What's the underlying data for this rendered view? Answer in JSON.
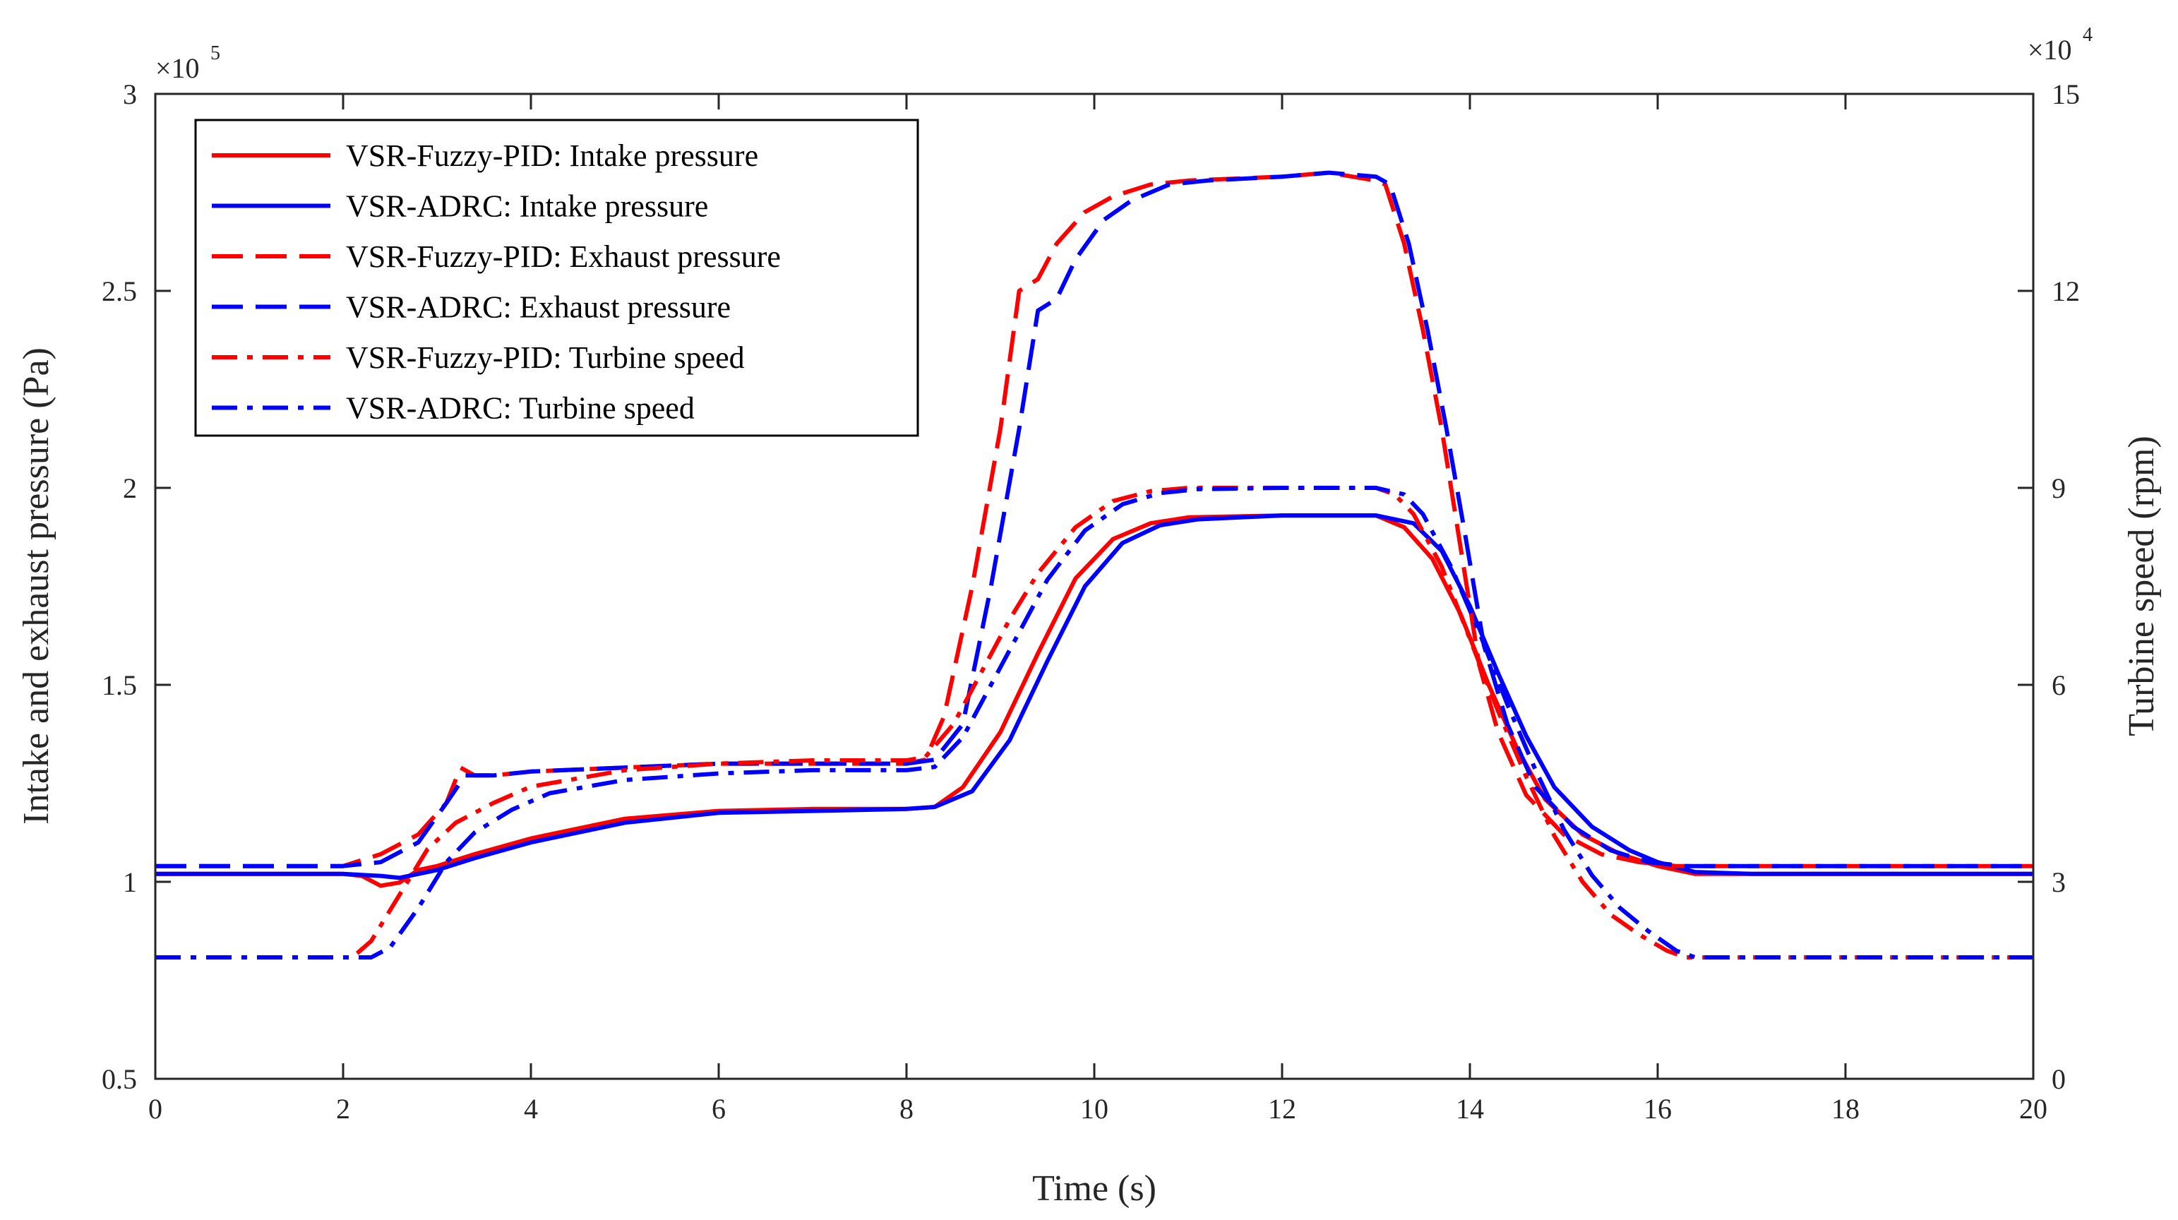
{
  "chart_data": {
    "type": "line",
    "xlabel": "Time (s)",
    "ylabel_left": "Intake and exhaust pressure (Pa)",
    "ylabel_right": "Turbine speed (rpm)",
    "xlim": [
      0,
      20
    ],
    "ylim_left": [
      0.5,
      3.0
    ],
    "ylim_right": [
      0,
      15
    ],
    "left_exponent_label": "×10",
    "left_exponent_power": "5",
    "right_exponent_label": "×10",
    "right_exponent_power": "4",
    "x_ticks": [
      "0",
      "2",
      "4",
      "6",
      "8",
      "10",
      "12",
      "14",
      "16",
      "18",
      "20"
    ],
    "left_ticks": [
      "0.5",
      "1",
      "1.5",
      "2",
      "2.5",
      "3"
    ],
    "right_ticks": [
      "0",
      "3",
      "6",
      "9",
      "12",
      "15"
    ],
    "grid": false,
    "legend_position": "top-left",
    "colors": {
      "red": "#ff0000",
      "blue": "#0000ff",
      "axis": "#262626"
    },
    "series": [
      {
        "name": "VSR-Fuzzy-PID: Intake pressure",
        "color": "red",
        "style": "solid",
        "axis": "left",
        "points": [
          [
            0,
            1.02
          ],
          [
            2.0,
            1.02
          ],
          [
            2.2,
            1.015
          ],
          [
            2.4,
            0.99
          ],
          [
            2.6,
            0.998
          ],
          [
            2.8,
            1.03
          ],
          [
            3.0,
            1.04
          ],
          [
            3.4,
            1.07
          ],
          [
            4.0,
            1.11
          ],
          [
            5.0,
            1.16
          ],
          [
            6.0,
            1.18
          ],
          [
            7.0,
            1.185
          ],
          [
            8.0,
            1.185
          ],
          [
            8.3,
            1.19
          ],
          [
            8.6,
            1.24
          ],
          [
            9.0,
            1.38
          ],
          [
            9.4,
            1.58
          ],
          [
            9.8,
            1.77
          ],
          [
            10.2,
            1.87
          ],
          [
            10.6,
            1.91
          ],
          [
            11.0,
            1.925
          ],
          [
            12.0,
            1.93
          ],
          [
            13.0,
            1.93
          ],
          [
            13.3,
            1.9
          ],
          [
            13.6,
            1.82
          ],
          [
            13.9,
            1.68
          ],
          [
            14.2,
            1.5
          ],
          [
            14.5,
            1.34
          ],
          [
            14.8,
            1.21
          ],
          [
            15.2,
            1.12
          ],
          [
            15.6,
            1.07
          ],
          [
            16.0,
            1.04
          ],
          [
            16.4,
            1.02
          ],
          [
            17.0,
            1.02
          ],
          [
            20,
            1.02
          ]
        ]
      },
      {
        "name": "VSR-ADRC: Intake pressure",
        "color": "blue",
        "style": "solid",
        "axis": "left",
        "points": [
          [
            0,
            1.02
          ],
          [
            2.0,
            1.02
          ],
          [
            2.4,
            1.015
          ],
          [
            2.6,
            1.01
          ],
          [
            2.8,
            1.02
          ],
          [
            3.0,
            1.03
          ],
          [
            3.4,
            1.06
          ],
          [
            4.0,
            1.1
          ],
          [
            5.0,
            1.15
          ],
          [
            6.0,
            1.175
          ],
          [
            7.0,
            1.18
          ],
          [
            8.0,
            1.185
          ],
          [
            8.3,
            1.19
          ],
          [
            8.7,
            1.23
          ],
          [
            9.1,
            1.36
          ],
          [
            9.5,
            1.56
          ],
          [
            9.9,
            1.75
          ],
          [
            10.3,
            1.86
          ],
          [
            10.7,
            1.905
          ],
          [
            11.1,
            1.92
          ],
          [
            12.0,
            1.93
          ],
          [
            13.0,
            1.93
          ],
          [
            13.4,
            1.91
          ],
          [
            13.7,
            1.84
          ],
          [
            14.0,
            1.7
          ],
          [
            14.3,
            1.53
          ],
          [
            14.6,
            1.37
          ],
          [
            14.9,
            1.24
          ],
          [
            15.3,
            1.14
          ],
          [
            15.7,
            1.08
          ],
          [
            16.0,
            1.05
          ],
          [
            16.4,
            1.025
          ],
          [
            17.0,
            1.02
          ],
          [
            20,
            1.02
          ]
        ]
      },
      {
        "name": "VSR-Fuzzy-PID: Exhaust pressure",
        "color": "red",
        "style": "dashed",
        "axis": "left",
        "points": [
          [
            0,
            1.04
          ],
          [
            2.0,
            1.04
          ],
          [
            2.4,
            1.07
          ],
          [
            2.8,
            1.12
          ],
          [
            3.1,
            1.2
          ],
          [
            3.25,
            1.29
          ],
          [
            3.4,
            1.27
          ],
          [
            3.6,
            1.27
          ],
          [
            4.0,
            1.28
          ],
          [
            6.0,
            1.3
          ],
          [
            7.0,
            1.3
          ],
          [
            8.0,
            1.3
          ],
          [
            8.2,
            1.31
          ],
          [
            8.4,
            1.42
          ],
          [
            8.7,
            1.75
          ],
          [
            9.0,
            2.15
          ],
          [
            9.2,
            2.5
          ],
          [
            9.4,
            2.53
          ],
          [
            9.6,
            2.62
          ],
          [
            9.9,
            2.7
          ],
          [
            10.2,
            2.74
          ],
          [
            10.6,
            2.77
          ],
          [
            11.0,
            2.78
          ],
          [
            12.0,
            2.79
          ],
          [
            12.5,
            2.8
          ],
          [
            13.0,
            2.78
          ],
          [
            13.1,
            2.77
          ],
          [
            13.3,
            2.62
          ],
          [
            13.5,
            2.4
          ],
          [
            13.7,
            2.15
          ],
          [
            13.9,
            1.85
          ],
          [
            14.1,
            1.55
          ],
          [
            14.3,
            1.38
          ],
          [
            14.6,
            1.22
          ],
          [
            15.0,
            1.12
          ],
          [
            15.4,
            1.07
          ],
          [
            15.8,
            1.05
          ],
          [
            16.2,
            1.04
          ],
          [
            20,
            1.04
          ]
        ]
      },
      {
        "name": "VSR-ADRC: Exhaust pressure",
        "color": "blue",
        "style": "dashed",
        "axis": "left",
        "points": [
          [
            0,
            1.04
          ],
          [
            2.0,
            1.04
          ],
          [
            2.4,
            1.05
          ],
          [
            2.8,
            1.1
          ],
          [
            3.1,
            1.2
          ],
          [
            3.3,
            1.27
          ],
          [
            3.6,
            1.27
          ],
          [
            4.0,
            1.28
          ],
          [
            6.0,
            1.3
          ],
          [
            7.0,
            1.3
          ],
          [
            8.0,
            1.3
          ],
          [
            8.3,
            1.31
          ],
          [
            8.6,
            1.4
          ],
          [
            8.9,
            1.75
          ],
          [
            9.2,
            2.15
          ],
          [
            9.4,
            2.45
          ],
          [
            9.6,
            2.48
          ],
          [
            9.8,
            2.58
          ],
          [
            10.1,
            2.68
          ],
          [
            10.4,
            2.73
          ],
          [
            10.8,
            2.77
          ],
          [
            11.2,
            2.78
          ],
          [
            12.0,
            2.79
          ],
          [
            12.5,
            2.8
          ],
          [
            13.0,
            2.79
          ],
          [
            13.15,
            2.77
          ],
          [
            13.35,
            2.62
          ],
          [
            13.55,
            2.4
          ],
          [
            13.75,
            2.15
          ],
          [
            13.95,
            1.88
          ],
          [
            14.15,
            1.6
          ],
          [
            14.4,
            1.4
          ],
          [
            14.7,
            1.24
          ],
          [
            15.1,
            1.14
          ],
          [
            15.5,
            1.08
          ],
          [
            15.9,
            1.05
          ],
          [
            16.3,
            1.04
          ],
          [
            20,
            1.04
          ]
        ]
      },
      {
        "name": "VSR-Fuzzy-PID: Turbine speed",
        "color": "red",
        "style": "dashdot",
        "axis": "right",
        "points": [
          [
            0,
            1.85
          ],
          [
            2.1,
            1.85
          ],
          [
            2.3,
            2.1
          ],
          [
            2.6,
            2.8
          ],
          [
            2.9,
            3.5
          ],
          [
            3.2,
            3.9
          ],
          [
            3.6,
            4.2
          ],
          [
            4.0,
            4.45
          ],
          [
            5.0,
            4.7
          ],
          [
            6.0,
            4.8
          ],
          [
            7.0,
            4.85
          ],
          [
            8.0,
            4.85
          ],
          [
            8.2,
            4.9
          ],
          [
            8.5,
            5.4
          ],
          [
            8.8,
            6.2
          ],
          [
            9.1,
            7.0
          ],
          [
            9.4,
            7.7
          ],
          [
            9.8,
            8.4
          ],
          [
            10.2,
            8.8
          ],
          [
            10.6,
            8.95
          ],
          [
            11.0,
            9.0
          ],
          [
            12.0,
            9.0
          ],
          [
            13.0,
            9.0
          ],
          [
            13.2,
            8.9
          ],
          [
            13.4,
            8.6
          ],
          [
            13.7,
            7.8
          ],
          [
            14.0,
            6.7
          ],
          [
            14.3,
            5.6
          ],
          [
            14.6,
            4.6
          ],
          [
            14.9,
            3.7
          ],
          [
            15.2,
            3.0
          ],
          [
            15.5,
            2.5
          ],
          [
            15.8,
            2.2
          ],
          [
            16.1,
            1.95
          ],
          [
            16.3,
            1.85
          ],
          [
            20,
            1.85
          ]
        ]
      },
      {
        "name": "VSR-ADRC: Turbine speed",
        "color": "blue",
        "style": "dashdot",
        "axis": "right",
        "points": [
          [
            0,
            1.85
          ],
          [
            2.3,
            1.85
          ],
          [
            2.5,
            2.0
          ],
          [
            2.8,
            2.6
          ],
          [
            3.1,
            3.3
          ],
          [
            3.4,
            3.75
          ],
          [
            3.8,
            4.1
          ],
          [
            4.2,
            4.35
          ],
          [
            5.0,
            4.55
          ],
          [
            6.0,
            4.65
          ],
          [
            7.0,
            4.7
          ],
          [
            8.0,
            4.7
          ],
          [
            8.3,
            4.75
          ],
          [
            8.6,
            5.2
          ],
          [
            8.9,
            6.0
          ],
          [
            9.2,
            6.8
          ],
          [
            9.5,
            7.6
          ],
          [
            9.9,
            8.35
          ],
          [
            10.3,
            8.75
          ],
          [
            10.7,
            8.92
          ],
          [
            11.1,
            8.98
          ],
          [
            12.0,
            9.0
          ],
          [
            13.0,
            9.0
          ],
          [
            13.3,
            8.9
          ],
          [
            13.5,
            8.6
          ],
          [
            13.8,
            7.8
          ],
          [
            14.1,
            6.8
          ],
          [
            14.4,
            5.7
          ],
          [
            14.7,
            4.7
          ],
          [
            15.0,
            3.8
          ],
          [
            15.3,
            3.1
          ],
          [
            15.6,
            2.6
          ],
          [
            15.9,
            2.25
          ],
          [
            16.2,
            1.95
          ],
          [
            16.4,
            1.85
          ],
          [
            20,
            1.85
          ]
        ]
      }
    ]
  }
}
